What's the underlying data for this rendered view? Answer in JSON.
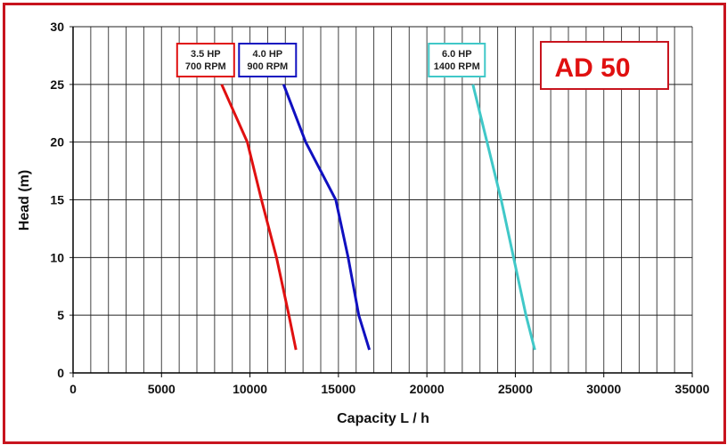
{
  "chart_data": {
    "type": "line",
    "title": "AD 50",
    "xlabel": "Capacity  L / h",
    "ylabel": "Head (m)",
    "xlim": [
      0,
      35000
    ],
    "ylim": [
      0,
      30
    ],
    "xticks": [
      0,
      5000,
      10000,
      15000,
      20000,
      25000,
      30000,
      35000
    ],
    "yticks": [
      0,
      5,
      10,
      15,
      20,
      25,
      30
    ],
    "grid": true,
    "title_color": "#e01010",
    "series": [
      {
        "name": "3.5 HP 700 RPM",
        "label_lines": [
          "3.5 HP",
          "700 RPM"
        ],
        "color": "#e01010",
        "points": [
          [
            8400,
            25
          ],
          [
            9850,
            20
          ],
          [
            10650,
            15
          ],
          [
            11500,
            10
          ],
          [
            12200,
            5
          ],
          [
            12600,
            2
          ]
        ]
      },
      {
        "name": "4.0 HP 900 RPM",
        "label_lines": [
          "4.0 HP",
          "900 RPM"
        ],
        "color": "#1010c0",
        "points": [
          [
            11900,
            25
          ],
          [
            13150,
            20
          ],
          [
            14850,
            15
          ],
          [
            15550,
            10
          ],
          [
            16150,
            5
          ],
          [
            16750,
            2
          ]
        ]
      },
      {
        "name": "6.0 HP 1400 RPM",
        "label_lines": [
          "6.0 HP",
          "1400 RPM"
        ],
        "color": "#40c8c8",
        "points": [
          [
            22600,
            25
          ],
          [
            23400,
            20
          ],
          [
            24200,
            15
          ],
          [
            24900,
            10
          ],
          [
            25600,
            5
          ],
          [
            26100,
            2
          ]
        ]
      }
    ]
  }
}
